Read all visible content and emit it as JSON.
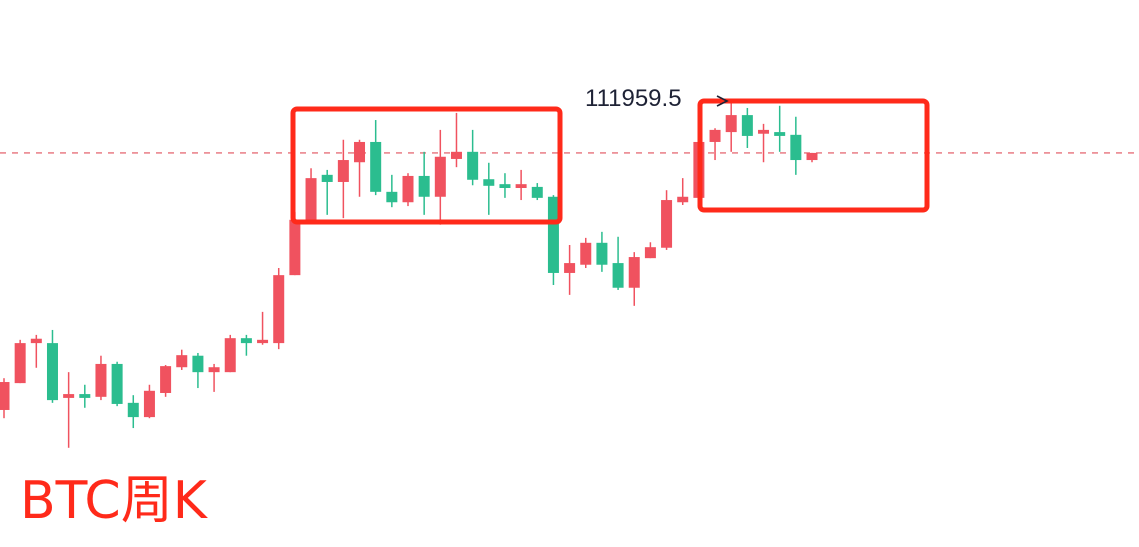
{
  "chart_data": {
    "type": "candlestick",
    "title": "BTC周K",
    "up_color": "#f0525f",
    "down_color": "#2bbd8f",
    "ylim": [
      31000,
      130800
    ],
    "open": [
      56000,
      60900,
      68200,
      68200,
      58200,
      58900,
      58400,
      64400,
      57300,
      54700,
      59100,
      63800,
      65900,
      62900,
      62900,
      69100,
      68200,
      68200,
      80600,
      90700,
      98900,
      97600,
      101200,
      104900,
      95800,
      93900,
      98700,
      94900,
      101800,
      103100,
      98100,
      97200,
      96500,
      96700,
      94900,
      81000,
      82500,
      86500,
      82800,
      78300,
      83700,
      85600,
      93900,
      94700,
      104900,
      106700,
      109800,
      106400,
      106700,
      106200,
      101600
    ],
    "high": [
      61800,
      68800,
      69700,
      70600,
      62900,
      60600,
      65900,
      64800,
      58700,
      60600,
      64200,
      67000,
      66400,
      64400,
      69700,
      69700,
      73900,
      81900,
      92100,
      100100,
      99800,
      105300,
      105300,
      108900,
      98900,
      99200,
      103100,
      107100,
      110200,
      107100,
      101100,
      99200,
      99800,
      97400,
      95200,
      86100,
      87400,
      88500,
      87600,
      84800,
      86600,
      96100,
      98300,
      105300,
      107400,
      111959.5,
      111100,
      108200,
      111500,
      109500,
      102900
    ],
    "low": [
      54500,
      60900,
      63700,
      57300,
      49100,
      56400,
      57800,
      56700,
      52700,
      54500,
      58400,
      63300,
      60000,
      59300,
      62900,
      65900,
      67900,
      67100,
      80600,
      90300,
      91600,
      91000,
      94900,
      95200,
      93000,
      93200,
      91600,
      89800,
      100300,
      97000,
      91600,
      94700,
      94300,
      94300,
      78800,
      77000,
      81900,
      81200,
      77900,
      75000,
      83700,
      85200,
      93400,
      94300,
      101600,
      103100,
      103800,
      101200,
      103100,
      98900,
      101200
    ],
    "close": [
      61100,
      68200,
      69000,
      57800,
      58900,
      58200,
      64400,
      57100,
      54700,
      59500,
      64000,
      66000,
      62900,
      63800,
      69100,
      68200,
      68800,
      80600,
      90700,
      98300,
      97600,
      101600,
      104900,
      95800,
      93900,
      98700,
      94900,
      102200,
      103100,
      98000,
      96900,
      96500,
      97200,
      94700,
      81000,
      82800,
      86500,
      82500,
      78300,
      83900,
      85700,
      94300,
      94900,
      104900,
      107100,
      109800,
      106000,
      107100,
      106000,
      101600,
      102900
    ]
  }
}
